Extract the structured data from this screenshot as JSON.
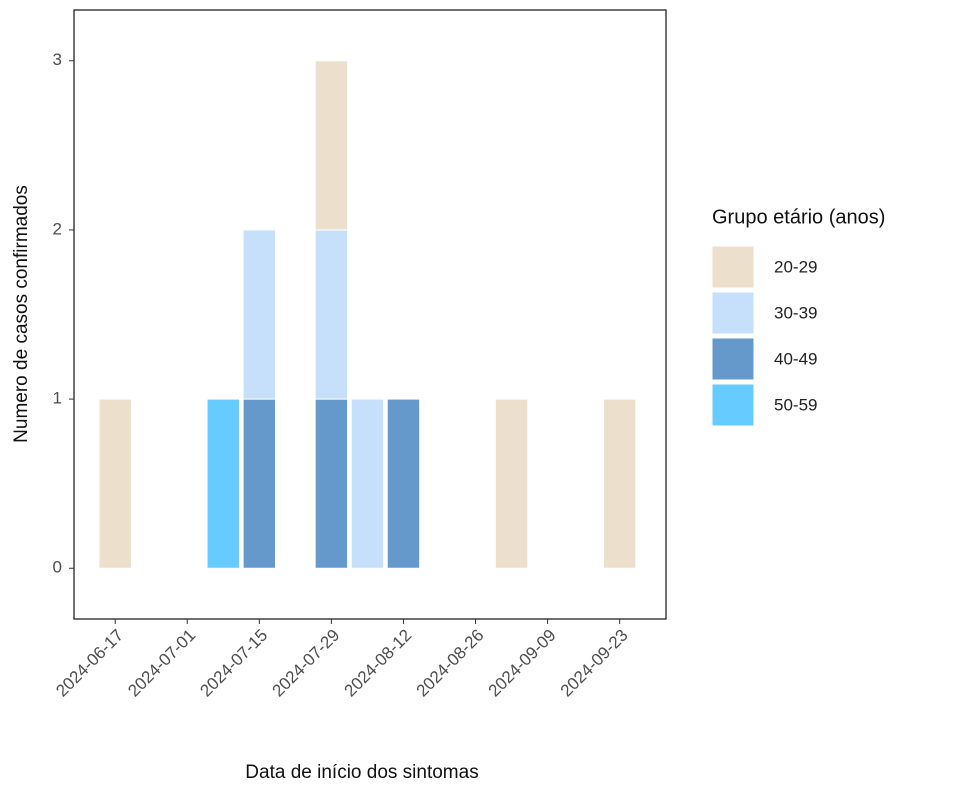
{
  "chart_data": {
    "type": "bar",
    "stacked": true,
    "x_label": "Data de início dos sintomas",
    "y_label": "Numero de casos confirmados",
    "legend_title": "Grupo etário (anos)",
    "legend_position": "right",
    "x": [
      "2024-06-17",
      "2024-07-08",
      "2024-07-15",
      "2024-07-29",
      "2024-08-05",
      "2024-08-12",
      "2024-09-02",
      "2024-09-23"
    ],
    "series": [
      {
        "name": "20-29",
        "color": "#ecdfcc",
        "values": [
          1,
          0,
          0,
          1,
          0,
          0,
          1,
          1
        ]
      },
      {
        "name": "30-39",
        "color": "#c6e0fb",
        "values": [
          0,
          0,
          1,
          1,
          1,
          0,
          0,
          0
        ]
      },
      {
        "name": "40-49",
        "color": "#6599cc",
        "values": [
          0,
          0,
          1,
          1,
          0,
          1,
          0,
          0
        ]
      },
      {
        "name": "50-59",
        "color": "#66ccff",
        "values": [
          0,
          1,
          0,
          0,
          0,
          0,
          0,
          0
        ]
      }
    ],
    "xlim": [
      "2024-06-09",
      "2024-10-02"
    ],
    "xticks": [
      "2024-06-17",
      "2024-07-01",
      "2024-07-15",
      "2024-07-29",
      "2024-08-12",
      "2024-08-26",
      "2024-09-09",
      "2024-09-23"
    ],
    "ylim": [
      -0.3,
      3.3
    ],
    "yticks": [
      0,
      1,
      2,
      3
    ],
    "grid": false
  }
}
